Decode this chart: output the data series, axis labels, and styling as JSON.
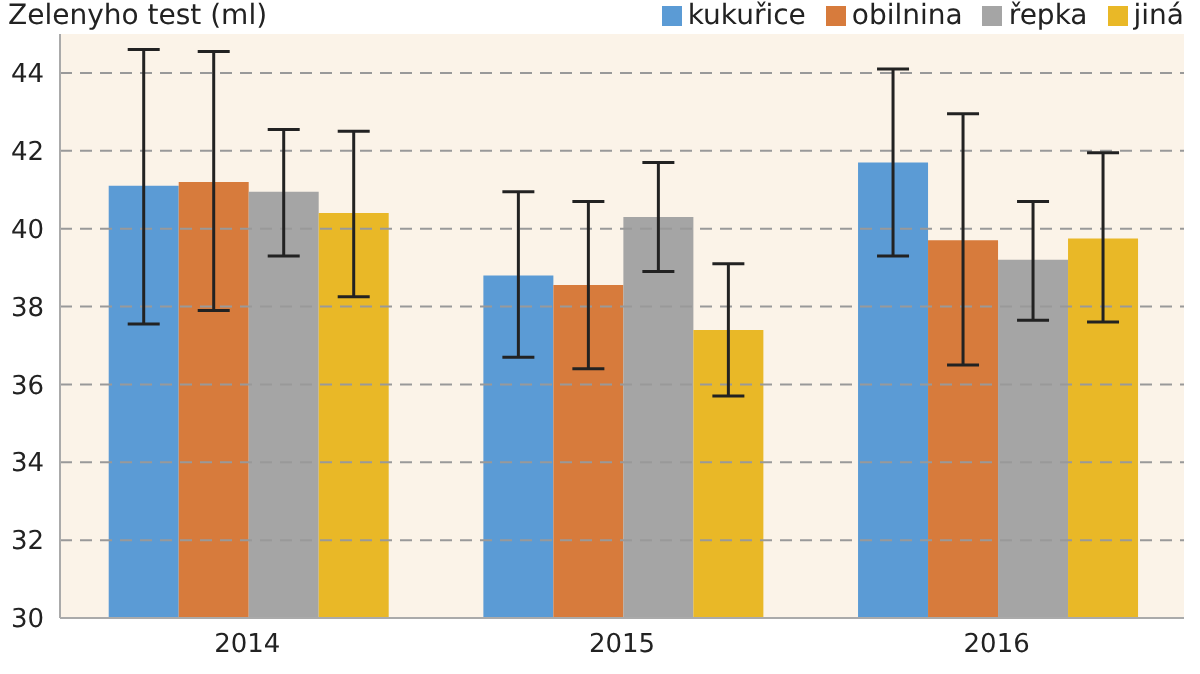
{
  "chart_data": {
    "type": "bar",
    "ylabel": "Zelenyho test (ml)",
    "categories": [
      "2014",
      "2015",
      "2016"
    ],
    "series": [
      {
        "name": "kukuřice",
        "color": "#5b9bd5",
        "values": [
          41.1,
          38.8,
          41.7
        ],
        "errors": [
          [
            37.55,
            44.6
          ],
          [
            36.7,
            40.95
          ],
          [
            39.3,
            44.1
          ]
        ]
      },
      {
        "name": "obilnina",
        "color": "#d77b3c",
        "values": [
          41.2,
          38.55,
          39.7
        ],
        "errors": [
          [
            37.9,
            44.55
          ],
          [
            36.4,
            40.7
          ],
          [
            36.5,
            42.95
          ]
        ]
      },
      {
        "name": "řepka",
        "color": "#a5a5a5",
        "values": [
          40.95,
          40.3,
          39.2
        ],
        "errors": [
          [
            39.3,
            42.55
          ],
          [
            38.9,
            41.7
          ],
          [
            37.65,
            40.7
          ]
        ]
      },
      {
        "name": "jiná",
        "color": "#e9b827",
        "values": [
          40.4,
          37.4,
          39.75
        ],
        "errors": [
          [
            38.25,
            42.5
          ],
          [
            35.7,
            39.1
          ],
          [
            37.6,
            41.95
          ]
        ]
      }
    ],
    "ylim": [
      30,
      45
    ],
    "yticks": [
      30,
      32,
      34,
      36,
      38,
      40,
      42,
      44
    ],
    "grid": "y",
    "legend": "top right"
  }
}
